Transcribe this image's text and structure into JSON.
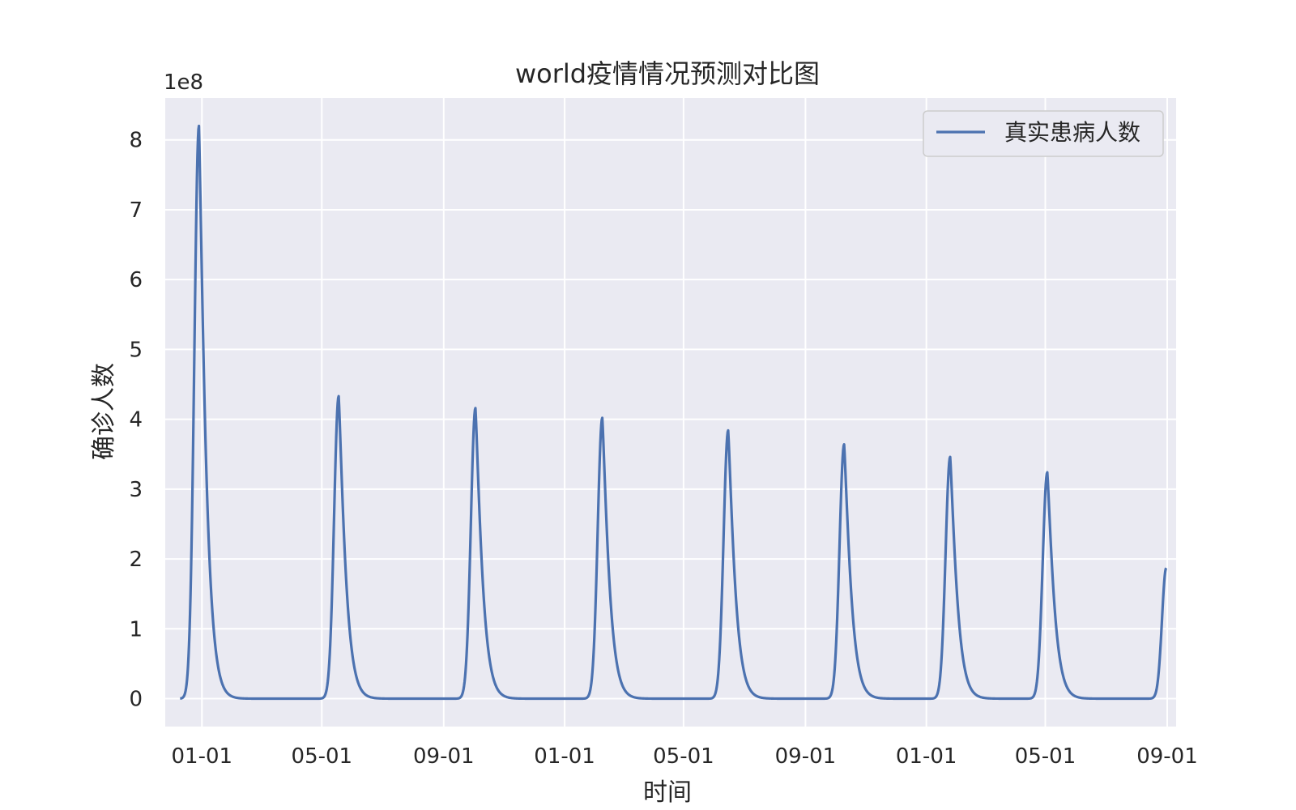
{
  "chart_data": {
    "type": "line",
    "title": "world疫情情况预测对比图",
    "xlabel": "时间",
    "ylabel": "确诊人数",
    "y_scale_label": "1e8",
    "y_multiplier": 100000000,
    "ylim": [
      -0.4,
      8.6
    ],
    "y_ticks": [
      0,
      1,
      2,
      3,
      4,
      5,
      6,
      7,
      8
    ],
    "x_axis": "date",
    "xlim": [
      "2019-11-25",
      "2022-09-10"
    ],
    "x_ticks": [
      {
        "date": "2020-01-01",
        "label": "01-01"
      },
      {
        "date": "2020-05-01",
        "label": "05-01"
      },
      {
        "date": "2020-09-01",
        "label": "09-01"
      },
      {
        "date": "2021-01-01",
        "label": "01-01"
      },
      {
        "date": "2021-05-01",
        "label": "05-01"
      },
      {
        "date": "2021-09-01",
        "label": "09-01"
      },
      {
        "date": "2022-01-01",
        "label": "01-01"
      },
      {
        "date": "2022-05-01",
        "label": "05-01"
      },
      {
        "date": "2022-09-01",
        "label": "09-01"
      }
    ],
    "grid": true,
    "background": "#eaeaf2",
    "legend_position": "top-right",
    "series": [
      {
        "name": "真实患病人数",
        "color": "#4c72b0",
        "x_start": "2019-12-10",
        "x_end": "2022-08-31",
        "peaks": [
          {
            "date": "2019-12-29",
            "value": 8.2
          },
          {
            "date": "2020-05-18",
            "value": 4.33
          },
          {
            "date": "2020-10-03",
            "value": 4.16
          },
          {
            "date": "2021-02-08",
            "value": 4.02
          },
          {
            "date": "2021-06-15",
            "value": 3.84
          },
          {
            "date": "2021-10-10",
            "value": 3.64
          },
          {
            "date": "2022-01-25",
            "value": 3.46
          },
          {
            "date": "2022-05-03",
            "value": 3.24
          }
        ],
        "end_value": 1.87
      }
    ]
  }
}
